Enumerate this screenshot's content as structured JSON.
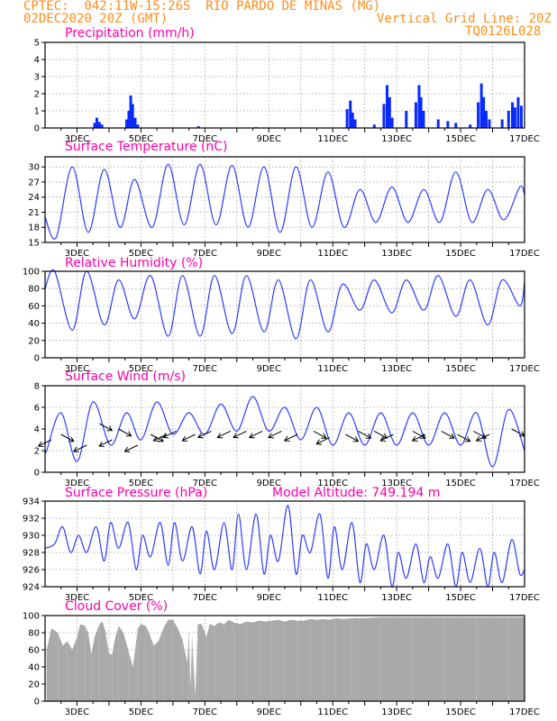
{
  "header": {
    "line1_left": "CPTEC:  042:11W-15:26S  RIO PARDO DE MINAS (MG)",
    "line2_left": "02DEC2020 20Z (GMT)",
    "line2_right": "Vertical Grid Line: 20Z",
    "line3_right": "TQ0126L028"
  },
  "model_altitude_label": "Model Altitude: 749.194 m",
  "colors": {
    "header": "#ff8c1a",
    "title": "#ff00aa",
    "series_line": "#2a3cff",
    "precip_bar": "#0a2bff",
    "cloud_fill": "#a9a9a9",
    "grid": "#9a9a9a"
  },
  "chart_data": [
    {
      "type": "bar",
      "title": "Precipitation (mm/h)",
      "xlabel": "",
      "ylabel": "",
      "x_tick_labels": [
        "3DEC",
        "5DEC",
        "7DEC",
        "9DEC",
        "11DEC",
        "13DEC",
        "15DEC",
        "17DEC"
      ],
      "ylim": [
        0,
        5
      ],
      "y_ticks": [
        0,
        1,
        2,
        3,
        4,
        5
      ],
      "grid": true,
      "bars": [
        {
          "day": 3.55,
          "v": 0.3
        },
        {
          "day": 3.62,
          "v": 0.6
        },
        {
          "day": 3.7,
          "v": 0.35
        },
        {
          "day": 3.78,
          "v": 0.2
        },
        {
          "day": 4.55,
          "v": 0.5
        },
        {
          "day": 4.62,
          "v": 1.0
        },
        {
          "day": 4.68,
          "v": 1.9
        },
        {
          "day": 4.74,
          "v": 1.4
        },
        {
          "day": 4.82,
          "v": 0.6
        },
        {
          "day": 4.9,
          "v": 0.2
        },
        {
          "day": 6.8,
          "v": 0.1
        },
        {
          "day": 8.6,
          "v": 0.05
        },
        {
          "day": 11.45,
          "v": 1.1
        },
        {
          "day": 11.55,
          "v": 1.6
        },
        {
          "day": 11.62,
          "v": 0.9
        },
        {
          "day": 11.7,
          "v": 0.5
        },
        {
          "day": 12.3,
          "v": 0.2
        },
        {
          "day": 12.6,
          "v": 1.4
        },
        {
          "day": 12.7,
          "v": 2.5
        },
        {
          "day": 12.78,
          "v": 1.8
        },
        {
          "day": 12.86,
          "v": 0.6
        },
        {
          "day": 13.3,
          "v": 1.0
        },
        {
          "day": 13.6,
          "v": 1.5
        },
        {
          "day": 13.7,
          "v": 2.5
        },
        {
          "day": 13.76,
          "v": 1.8
        },
        {
          "day": 13.84,
          "v": 1.0
        },
        {
          "day": 14.3,
          "v": 0.5
        },
        {
          "day": 14.6,
          "v": 0.4
        },
        {
          "day": 14.85,
          "v": 0.3
        },
        {
          "day": 15.3,
          "v": 0.2
        },
        {
          "day": 15.55,
          "v": 1.5
        },
        {
          "day": 15.65,
          "v": 2.6
        },
        {
          "day": 15.72,
          "v": 1.8
        },
        {
          "day": 15.8,
          "v": 1.0
        },
        {
          "day": 15.9,
          "v": 0.5
        },
        {
          "day": 16.3,
          "v": 0.5
        },
        {
          "day": 16.5,
          "v": 1.0
        },
        {
          "day": 16.62,
          "v": 1.5
        },
        {
          "day": 16.7,
          "v": 1.2
        },
        {
          "day": 16.8,
          "v": 1.8
        },
        {
          "day": 16.9,
          "v": 1.3
        }
      ]
    },
    {
      "type": "line",
      "title": "Surface Temperature (nC)",
      "xlabel": "",
      "ylabel": "",
      "x_tick_labels": [
        "3DEC",
        "5DEC",
        "7DEC",
        "9DEC",
        "11DEC",
        "13DEC",
        "15DEC",
        "17DEC"
      ],
      "ylim": [
        15,
        32
      ],
      "y_ticks": [
        15,
        18,
        21,
        24,
        27,
        30
      ],
      "grid": true,
      "series": [
        {
          "daily_max_day": [
            2.85,
            3.85,
            4.8,
            5.85,
            6.85,
            7.85,
            8.85,
            9.85,
            10.85,
            11.85,
            12.85,
            13.85,
            14.85,
            15.85,
            16.85
          ],
          "daily_max": [
            30,
            29.5,
            27.5,
            30.5,
            30.5,
            30.3,
            30,
            30,
            29,
            25.5,
            26,
            25.5,
            29,
            25.5,
            26
          ],
          "daily_min_day": [
            2.35,
            3.35,
            4.35,
            5.35,
            6.35,
            7.35,
            8.35,
            9.35,
            10.35,
            11.35,
            12.35,
            13.35,
            14.35,
            15.35,
            16.35
          ],
          "daily_min": [
            16,
            17,
            18,
            18,
            18.5,
            18.5,
            18,
            17,
            18,
            18,
            19,
            19,
            19,
            19,
            19.5
          ],
          "start_value": 20,
          "end_value": 24.5
        }
      ]
    },
    {
      "type": "line",
      "title": "Relative Humidity (%)",
      "xlabel": "",
      "ylabel": "",
      "x_tick_labels": [
        "3DEC",
        "5DEC",
        "7DEC",
        "9DEC",
        "11DEC",
        "13DEC",
        "15DEC",
        "17DEC"
      ],
      "ylim": [
        0,
        100
      ],
      "y_ticks": [
        0,
        20,
        40,
        60,
        80,
        100
      ],
      "grid": true,
      "series": [
        {
          "daily_max_day": [
            2.3,
            3.3,
            4.3,
            5.3,
            6.3,
            7.3,
            8.3,
            9.3,
            10.3,
            11.3,
            12.3,
            13.3,
            14.3,
            15.3,
            16.3
          ],
          "daily_max": [
            100,
            100,
            90,
            95,
            95,
            95,
            95,
            90,
            90,
            85,
            90,
            90,
            95,
            90,
            90
          ],
          "daily_min_day": [
            2.85,
            3.85,
            4.8,
            5.85,
            6.85,
            7.85,
            8.85,
            9.85,
            10.85,
            11.85,
            12.85,
            13.85,
            14.85,
            15.85,
            16.85
          ],
          "daily_min": [
            32,
            38,
            45,
            25,
            25,
            28,
            30,
            22,
            30,
            55,
            52,
            55,
            48,
            38,
            60
          ],
          "start_value": 80,
          "end_value": 88
        }
      ]
    },
    {
      "type": "line",
      "title": "Surface Wind (m/s)",
      "xlabel": "",
      "ylabel": "",
      "x_tick_labels": [
        "3DEC",
        "5DEC",
        "7DEC",
        "9DEC",
        "11DEC",
        "13DEC",
        "15DEC",
        "17DEC"
      ],
      "ylim": [
        0,
        8
      ],
      "y_ticks": [
        0,
        2,
        4,
        6,
        8
      ],
      "grid": true,
      "series": [
        {
          "daily_max_day": [
            2.5,
            3.5,
            4.55,
            5.5,
            6.5,
            7.5,
            8.5,
            9.5,
            10.5,
            11.5,
            12.5,
            13.5,
            14.5,
            15.5,
            16.5
          ],
          "daily_max": [
            5.5,
            6.5,
            5.5,
            6.5,
            5.5,
            6.3,
            7,
            6,
            6,
            5.5,
            5.5,
            5.5,
            5.5,
            5.5,
            5.8
          ],
          "daily_min_day": [
            2.05,
            3.0,
            4.05,
            5.0,
            6.0,
            7.0,
            8.0,
            9.0,
            10.0,
            11.0,
            12.0,
            13.0,
            14.0,
            15.0,
            16.0
          ],
          "daily_min": [
            2,
            1,
            2.5,
            3,
            3.5,
            3.5,
            3.8,
            3.8,
            3,
            2.5,
            2.5,
            2.5,
            2.5,
            2.5,
            0.5
          ],
          "start_value": 2,
          "end_value": 2
        }
      ],
      "arrows": [
        {
          "day": 2.2,
          "value": 3.0,
          "dir": -1
        },
        {
          "day": 2.5,
          "value": 3.5,
          "dir": 1
        },
        {
          "day": 3.3,
          "value": 2.5,
          "dir": -1
        },
        {
          "day": 3.7,
          "value": 4.5,
          "dir": 1
        },
        {
          "day": 4.1,
          "value": 3.0,
          "dir": -1
        },
        {
          "day": 4.3,
          "value": 4.0,
          "dir": 1
        },
        {
          "day": 4.9,
          "value": 2.5,
          "dir": -1
        },
        {
          "day": 5.3,
          "value": 3.5,
          "dir": 1
        },
        {
          "day": 5.8,
          "value": 3.5,
          "dir": -1
        },
        {
          "day": 6.1,
          "value": 3.8,
          "dir": -1
        },
        {
          "day": 6.7,
          "value": 3.5,
          "dir": -1
        },
        {
          "day": 7.2,
          "value": 3.8,
          "dir": -1
        },
        {
          "day": 7.8,
          "value": 3.8,
          "dir": -1
        },
        {
          "day": 8.3,
          "value": 3.8,
          "dir": -1
        },
        {
          "day": 8.8,
          "value": 3.8,
          "dir": -1
        },
        {
          "day": 9.4,
          "value": 3.8,
          "dir": -1
        },
        {
          "day": 9.9,
          "value": 3.5,
          "dir": -1
        },
        {
          "day": 10.4,
          "value": 3.8,
          "dir": 1
        },
        {
          "day": 10.9,
          "value": 3.2,
          "dir": -1
        },
        {
          "day": 11.4,
          "value": 3.5,
          "dir": 1
        },
        {
          "day": 11.8,
          "value": 3.8,
          "dir": 1
        },
        {
          "day": 12.3,
          "value": 3.8,
          "dir": 1
        },
        {
          "day": 12.9,
          "value": 3.5,
          "dir": -1
        },
        {
          "day": 13.5,
          "value": 3.8,
          "dir": 1
        },
        {
          "day": 13.9,
          "value": 3.5,
          "dir": -1
        },
        {
          "day": 14.4,
          "value": 3.8,
          "dir": 1
        },
        {
          "day": 14.9,
          "value": 3.5,
          "dir": 1
        },
        {
          "day": 15.4,
          "value": 3.8,
          "dir": 1
        },
        {
          "day": 15.9,
          "value": 3.5,
          "dir": -1
        },
        {
          "day": 16.6,
          "value": 4.0,
          "dir": 1
        }
      ]
    },
    {
      "type": "line",
      "title": "Surface Pressure (hPa)",
      "xlabel": "",
      "ylabel": "",
      "x_tick_labels": [
        "3DEC",
        "5DEC",
        "7DEC",
        "9DEC",
        "11DEC",
        "13DEC",
        "15DEC",
        "17DEC"
      ],
      "ylim": [
        924,
        934
      ],
      "y_ticks": [
        924,
        926,
        928,
        930,
        932,
        934
      ],
      "grid": true,
      "series": [
        {
          "daily_max_day": [
            2.55,
            3.05,
            3.6,
            4.05,
            4.6,
            5.05,
            5.6,
            6.05,
            6.6,
            7.05,
            7.6,
            8.05,
            8.6,
            9.05,
            9.6,
            10.05,
            10.6,
            11.05,
            11.6,
            12.05,
            12.6,
            13.05,
            13.6,
            14.05,
            14.6,
            15.05,
            15.6,
            16.05,
            16.6
          ],
          "daily_max": [
            931,
            930,
            931,
            931.5,
            931.5,
            930,
            931.5,
            931.5,
            931,
            930.5,
            931.5,
            932.5,
            932.5,
            930,
            933.5,
            930,
            932.5,
            931,
            931.5,
            929,
            930,
            928,
            929,
            927.5,
            929,
            928,
            928.5,
            928,
            929.5
          ],
          "daily_min_day": [
            2.3,
            2.8,
            3.3,
            3.85,
            4.3,
            4.85,
            5.3,
            5.85,
            6.3,
            6.85,
            7.3,
            7.85,
            8.3,
            8.85,
            9.3,
            9.85,
            10.3,
            10.85,
            11.3,
            11.85,
            12.3,
            12.85,
            13.3,
            13.85,
            14.3,
            14.85,
            15.3,
            15.85,
            16.3,
            16.85
          ],
          "daily_min": [
            929,
            928,
            928,
            927,
            928.5,
            926,
            927.5,
            926.5,
            927,
            925.5,
            926,
            926,
            926,
            925.5,
            927,
            925.5,
            928,
            925,
            926,
            924.5,
            926,
            924,
            925,
            924.5,
            925,
            924,
            924.5,
            924,
            924.5,
            925.5
          ],
          "start_value": 928.5,
          "end_value": 926
        }
      ]
    },
    {
      "type": "area",
      "title": "Cloud Cover (%)",
      "xlabel": "",
      "ylabel": "",
      "x_tick_labels": [
        "3DEC",
        "5DEC",
        "7DEC",
        "9DEC",
        "11DEC",
        "13DEC",
        "15DEC",
        "17DEC"
      ],
      "ylim": [
        0,
        100
      ],
      "y_ticks": [
        0,
        20,
        40,
        60,
        80,
        100
      ],
      "grid": true,
      "series": [
        {
          "points": [
            [
              2.05,
              60
            ],
            [
              2.2,
              85
            ],
            [
              2.4,
              80
            ],
            [
              2.55,
              65
            ],
            [
              2.7,
              70
            ],
            [
              2.85,
              60
            ],
            [
              3.0,
              75
            ],
            [
              3.1,
              90
            ],
            [
              3.25,
              88
            ],
            [
              3.35,
              80
            ],
            [
              3.45,
              55
            ],
            [
              3.55,
              75
            ],
            [
              3.7,
              90
            ],
            [
              3.8,
              93
            ],
            [
              3.9,
              80
            ],
            [
              4.0,
              55
            ],
            [
              4.1,
              55
            ],
            [
              4.2,
              75
            ],
            [
              4.3,
              88
            ],
            [
              4.45,
              80
            ],
            [
              4.6,
              60
            ],
            [
              4.75,
              40
            ],
            [
              4.9,
              85
            ],
            [
              5.0,
              90
            ],
            [
              5.15,
              88
            ],
            [
              5.25,
              80
            ],
            [
              5.4,
              65
            ],
            [
              5.55,
              70
            ],
            [
              5.7,
              85
            ],
            [
              5.85,
              95
            ],
            [
              6.0,
              95
            ],
            [
              6.15,
              85
            ],
            [
              6.3,
              72
            ],
            [
              6.45,
              45
            ],
            [
              6.5,
              80
            ],
            [
              6.55,
              15
            ],
            [
              6.6,
              75
            ],
            [
              6.7,
              5
            ],
            [
              6.78,
              90
            ],
            [
              6.9,
              90
            ],
            [
              7.05,
              75
            ],
            [
              7.15,
              90
            ],
            [
              7.3,
              88
            ],
            [
              7.45,
              92
            ],
            [
              7.6,
              90
            ],
            [
              7.75,
              95
            ],
            [
              7.9,
              92
            ],
            [
              8.1,
              90
            ],
            [
              8.3,
              93
            ],
            [
              8.5,
              92
            ],
            [
              8.7,
              94
            ],
            [
              8.9,
              93
            ],
            [
              9.1,
              94
            ],
            [
              9.3,
              95
            ],
            [
              9.5,
              93
            ],
            [
              9.7,
              95
            ],
            [
              9.9,
              94
            ],
            [
              10.1,
              94
            ],
            [
              10.3,
              96
            ],
            [
              10.5,
              95
            ],
            [
              10.7,
              96
            ],
            [
              10.9,
              95
            ],
            [
              11.1,
              97
            ],
            [
              11.3,
              96
            ],
            [
              11.6,
              97
            ],
            [
              12.0,
              97
            ],
            [
              12.5,
              98
            ],
            [
              13.0,
              98
            ],
            [
              13.5,
              98
            ],
            [
              14.0,
              98
            ],
            [
              14.5,
              98
            ],
            [
              15.0,
              98
            ],
            [
              15.5,
              98
            ],
            [
              16.0,
              98
            ],
            [
              16.5,
              98
            ],
            [
              17.0,
              98
            ]
          ]
        }
      ]
    }
  ]
}
